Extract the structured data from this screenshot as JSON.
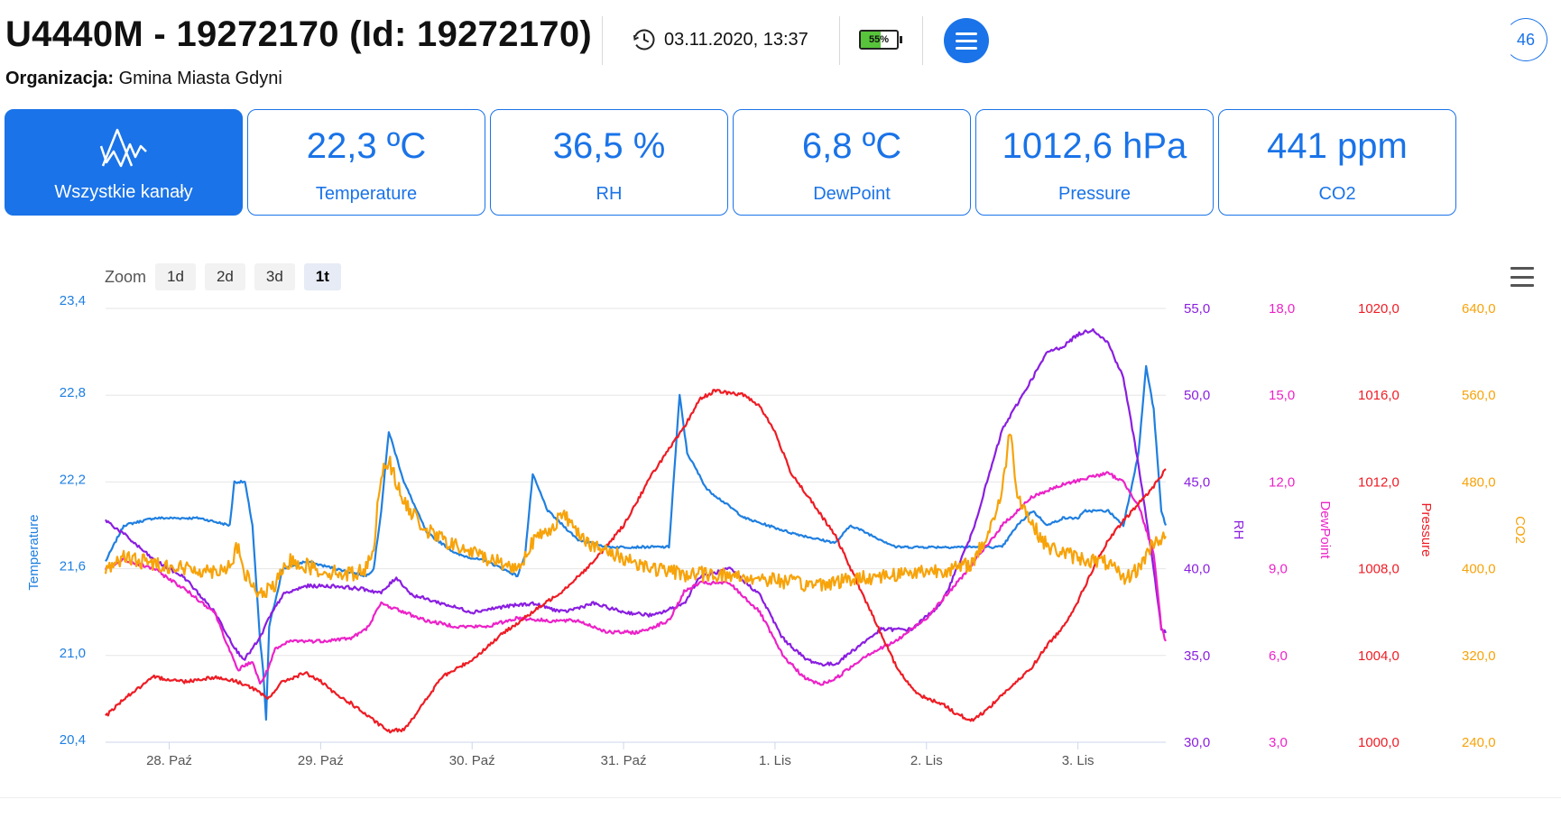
{
  "header": {
    "title": "U4440M - 19272170 (Id: 19272170)",
    "org_label": "Organizacja:",
    "org_value": "Gmina Miasta Gdyni",
    "datetime": "03.11.2020, 13:37",
    "battery_level": 55,
    "battery_text": "55%",
    "counter": "46",
    "history_icon": "clock-history-icon",
    "menu_icon": "hamburger-menu-icon"
  },
  "tiles": {
    "all": {
      "label": "Wszystkie kanały",
      "icon": "chart-lines-icon"
    },
    "temperature": {
      "value": "22,3 ºC",
      "label": "Temperature"
    },
    "rh": {
      "value": "36,5 %",
      "label": "RH"
    },
    "dewpoint": {
      "value": "6,8 ºC",
      "label": "DewPoint"
    },
    "pressure": {
      "value": "1012,6 hPa",
      "label": "Pressure"
    },
    "co2": {
      "value": "441 ppm",
      "label": "CO2"
    }
  },
  "zoom": {
    "label": "Zoom",
    "options": [
      "1d",
      "2d",
      "3d",
      "1t"
    ],
    "selected": "1t"
  },
  "colors": {
    "accent": "#1a73e8",
    "temperature": "#1f7fe0",
    "rh": "#8a1ee0",
    "dewpoint": "#ec22c8",
    "pressure": "#ee1c24",
    "co2": "#f7a30a"
  },
  "chart_data": {
    "type": "line",
    "x_labels": [
      "28. Paź",
      "29. Paź",
      "30. Paź",
      "31. Paź",
      "1. Lis",
      "2. Lis",
      "3. Lis"
    ],
    "x_range": [
      -0.42,
      6.58
    ],
    "axes": {
      "temperature": {
        "title": "Temperature",
        "ticks": [
          "20,4",
          "21,0",
          "21,6",
          "22,2",
          "22,8",
          "23,4"
        ],
        "range": [
          20.4,
          23.4
        ]
      },
      "rh": {
        "title": "RH",
        "ticks": [
          "30,0",
          "35,0",
          "40,0",
          "45,0",
          "50,0",
          "55,0"
        ],
        "range": [
          30,
          55
        ]
      },
      "dewpoint": {
        "title": "DewPoint",
        "ticks": [
          "3,0",
          "6,0",
          "9,0",
          "12,0",
          "15,0",
          "18,0"
        ],
        "range": [
          3,
          18
        ]
      },
      "pressure": {
        "title": "Pressure",
        "ticks": [
          "1000,0",
          "1004,0",
          "1008,0",
          "1012,0",
          "1016,0",
          "1020,0"
        ],
        "range": [
          1000,
          1020
        ]
      },
      "co2": {
        "title": "CO2",
        "ticks": [
          "240,0",
          "320,0",
          "400,0",
          "480,0",
          "560,0",
          "640,0"
        ],
        "range": [
          240,
          640
        ]
      }
    },
    "series": [
      {
        "name": "Temperature",
        "axis": "temperature",
        "noise": 0.008,
        "points": [
          [
            -0.42,
            21.65
          ],
          [
            -0.3,
            21.9
          ],
          [
            -0.1,
            21.95
          ],
          [
            0.2,
            21.95
          ],
          [
            0.4,
            21.9
          ],
          [
            0.43,
            22.2
          ],
          [
            0.5,
            22.2
          ],
          [
            0.55,
            21.9
          ],
          [
            0.6,
            21.1
          ],
          [
            0.62,
            20.9
          ],
          [
            0.64,
            20.55
          ],
          [
            0.66,
            21.2
          ],
          [
            0.75,
            21.6
          ],
          [
            0.9,
            21.65
          ],
          [
            1.1,
            21.6
          ],
          [
            1.3,
            21.55
          ],
          [
            1.35,
            21.6
          ],
          [
            1.4,
            22.0
          ],
          [
            1.45,
            22.55
          ],
          [
            1.55,
            22.2
          ],
          [
            1.7,
            21.85
          ],
          [
            1.9,
            21.7
          ],
          [
            2.1,
            21.65
          ],
          [
            2.3,
            21.55
          ],
          [
            2.35,
            21.7
          ],
          [
            2.4,
            22.25
          ],
          [
            2.5,
            22.0
          ],
          [
            2.7,
            21.8
          ],
          [
            2.9,
            21.75
          ],
          [
            3.1,
            21.75
          ],
          [
            3.2,
            21.75
          ],
          [
            3.3,
            21.75
          ],
          [
            3.37,
            22.8
          ],
          [
            3.42,
            22.4
          ],
          [
            3.55,
            22.15
          ],
          [
            3.8,
            21.95
          ],
          [
            4.1,
            21.85
          ],
          [
            4.3,
            21.8
          ],
          [
            4.4,
            21.78
          ],
          [
            4.5,
            21.9
          ],
          [
            4.6,
            21.85
          ],
          [
            4.8,
            21.75
          ],
          [
            5.1,
            21.75
          ],
          [
            5.3,
            21.75
          ],
          [
            5.5,
            21.75
          ],
          [
            5.6,
            21.9
          ],
          [
            5.7,
            22.0
          ],
          [
            5.8,
            21.9
          ],
          [
            5.9,
            21.95
          ],
          [
            6.0,
            21.95
          ],
          [
            6.05,
            22.0
          ],
          [
            6.2,
            22.0
          ],
          [
            6.3,
            21.9
          ],
          [
            6.4,
            22.4
          ],
          [
            6.45,
            23.0
          ],
          [
            6.5,
            22.7
          ],
          [
            6.55,
            22.0
          ],
          [
            6.58,
            21.9
          ]
        ]
      },
      {
        "name": "RH",
        "axis": "rh",
        "noise": 0.1,
        "points": [
          [
            -0.42,
            42.8
          ],
          [
            -0.3,
            42.0
          ],
          [
            -0.1,
            40.5
          ],
          [
            0.1,
            39.5
          ],
          [
            0.3,
            37.5
          ],
          [
            0.45,
            35.2
          ],
          [
            0.5,
            34.8
          ],
          [
            0.6,
            36.0
          ],
          [
            0.65,
            37.0
          ],
          [
            0.75,
            38.5
          ],
          [
            0.9,
            39.0
          ],
          [
            1.1,
            39.0
          ],
          [
            1.3,
            38.8
          ],
          [
            1.4,
            38.6
          ],
          [
            1.5,
            39.5
          ],
          [
            1.6,
            38.5
          ],
          [
            1.8,
            38.0
          ],
          [
            2.0,
            37.5
          ],
          [
            2.2,
            37.8
          ],
          [
            2.4,
            38.0
          ],
          [
            2.6,
            37.5
          ],
          [
            2.8,
            38.0
          ],
          [
            3.0,
            37.5
          ],
          [
            3.2,
            37.3
          ],
          [
            3.4,
            38.0
          ],
          [
            3.5,
            39.5
          ],
          [
            3.7,
            40.0
          ],
          [
            3.9,
            38.5
          ],
          [
            4.05,
            36.0
          ],
          [
            4.2,
            34.8
          ],
          [
            4.3,
            34.5
          ],
          [
            4.4,
            34.5
          ],
          [
            4.5,
            35.2
          ],
          [
            4.7,
            36.5
          ],
          [
            4.9,
            36.5
          ],
          [
            5.1,
            38.0
          ],
          [
            5.3,
            42.0
          ],
          [
            5.5,
            48.0
          ],
          [
            5.6,
            49.5
          ],
          [
            5.7,
            51.0
          ],
          [
            5.8,
            52.5
          ],
          [
            5.9,
            52.8
          ],
          [
            6.0,
            53.5
          ],
          [
            6.1,
            53.8
          ],
          [
            6.2,
            53.0
          ],
          [
            6.3,
            51.0
          ],
          [
            6.4,
            46.0
          ],
          [
            6.5,
            40.0
          ],
          [
            6.55,
            36.5
          ],
          [
            6.58,
            36.3
          ]
        ]
      },
      {
        "name": "DewPoint",
        "axis": "dewpoint",
        "noise": 0.06,
        "points": [
          [
            -0.42,
            9.0
          ],
          [
            -0.3,
            9.3
          ],
          [
            -0.1,
            9.0
          ],
          [
            0.1,
            8.3
          ],
          [
            0.3,
            7.5
          ],
          [
            0.45,
            5.5
          ],
          [
            0.55,
            5.8
          ],
          [
            0.6,
            5.0
          ],
          [
            0.65,
            5.5
          ],
          [
            0.7,
            6.2
          ],
          [
            0.8,
            6.5
          ],
          [
            1.0,
            6.5
          ],
          [
            1.2,
            6.6
          ],
          [
            1.3,
            6.9
          ],
          [
            1.4,
            7.8
          ],
          [
            1.5,
            7.6
          ],
          [
            1.7,
            7.2
          ],
          [
            1.9,
            7.0
          ],
          [
            2.1,
            7.0
          ],
          [
            2.3,
            7.3
          ],
          [
            2.5,
            7.2
          ],
          [
            2.7,
            7.2
          ],
          [
            2.9,
            6.8
          ],
          [
            3.1,
            6.8
          ],
          [
            3.3,
            7.2
          ],
          [
            3.4,
            8.2
          ],
          [
            3.5,
            8.5
          ],
          [
            3.7,
            8.5
          ],
          [
            3.9,
            7.5
          ],
          [
            4.05,
            6.0
          ],
          [
            4.2,
            5.2
          ],
          [
            4.3,
            5.0
          ],
          [
            4.4,
            5.2
          ],
          [
            4.6,
            6.0
          ],
          [
            4.8,
            6.5
          ],
          [
            5.0,
            7.3
          ],
          [
            5.2,
            8.5
          ],
          [
            5.4,
            9.8
          ],
          [
            5.5,
            10.5
          ],
          [
            5.6,
            11.0
          ],
          [
            5.7,
            11.5
          ],
          [
            5.8,
            11.7
          ],
          [
            5.9,
            11.9
          ],
          [
            6.1,
            12.2
          ],
          [
            6.2,
            12.3
          ],
          [
            6.3,
            12.0
          ],
          [
            6.4,
            11.2
          ],
          [
            6.5,
            9.5
          ],
          [
            6.55,
            7.0
          ],
          [
            6.58,
            6.5
          ]
        ]
      },
      {
        "name": "Pressure",
        "axis": "pressure",
        "noise": 0.08,
        "points": [
          [
            -0.42,
            1001.2
          ],
          [
            -0.3,
            1002.0
          ],
          [
            -0.1,
            1003.0
          ],
          [
            0.1,
            1002.8
          ],
          [
            0.3,
            1003.0
          ],
          [
            0.45,
            1002.8
          ],
          [
            0.55,
            1002.5
          ],
          [
            0.65,
            1002.0
          ],
          [
            0.75,
            1002.8
          ],
          [
            0.9,
            1003.2
          ],
          [
            1.0,
            1002.8
          ],
          [
            1.1,
            1002.2
          ],
          [
            1.2,
            1001.8
          ],
          [
            1.35,
            1001.0
          ],
          [
            1.45,
            1000.5
          ],
          [
            1.55,
            1000.6
          ],
          [
            1.65,
            1001.5
          ],
          [
            1.8,
            1003.0
          ],
          [
            2.0,
            1003.8
          ],
          [
            2.2,
            1005.0
          ],
          [
            2.4,
            1006.0
          ],
          [
            2.6,
            1007.0
          ],
          [
            2.8,
            1008.3
          ],
          [
            3.0,
            1010.0
          ],
          [
            3.2,
            1012.5
          ],
          [
            3.4,
            1014.5
          ],
          [
            3.5,
            1015.8
          ],
          [
            3.6,
            1016.2
          ],
          [
            3.8,
            1016.0
          ],
          [
            3.9,
            1015.5
          ],
          [
            4.0,
            1014.3
          ],
          [
            4.1,
            1012.5
          ],
          [
            4.2,
            1011.5
          ],
          [
            4.3,
            1010.5
          ],
          [
            4.4,
            1009.5
          ],
          [
            4.5,
            1008.0
          ],
          [
            4.6,
            1006.5
          ],
          [
            4.7,
            1005.0
          ],
          [
            4.8,
            1003.5
          ],
          [
            4.9,
            1002.5
          ],
          [
            5.0,
            1002.0
          ],
          [
            5.1,
            1001.8
          ],
          [
            5.2,
            1001.3
          ],
          [
            5.3,
            1001.0
          ],
          [
            5.4,
            1001.5
          ],
          [
            5.5,
            1002.2
          ],
          [
            5.6,
            1002.8
          ],
          [
            5.7,
            1003.5
          ],
          [
            5.8,
            1004.5
          ],
          [
            5.9,
            1005.3
          ],
          [
            6.0,
            1006.5
          ],
          [
            6.1,
            1008.0
          ],
          [
            6.2,
            1009.3
          ],
          [
            6.3,
            1010.2
          ],
          [
            6.4,
            1011.0
          ],
          [
            6.5,
            1011.8
          ],
          [
            6.58,
            1012.6
          ]
        ]
      },
      {
        "name": "CO2",
        "axis": "co2",
        "noise": 7,
        "points": [
          [
            -0.42,
            400
          ],
          [
            -0.3,
            410
          ],
          [
            -0.1,
            405
          ],
          [
            0.1,
            400
          ],
          [
            0.3,
            398
          ],
          [
            0.4,
            403
          ],
          [
            0.45,
            420
          ],
          [
            0.5,
            395
          ],
          [
            0.6,
            375
          ],
          [
            0.7,
            385
          ],
          [
            0.8,
            408
          ],
          [
            1.0,
            398
          ],
          [
            1.2,
            395
          ],
          [
            1.3,
            400
          ],
          [
            1.35,
            420
          ],
          [
            1.4,
            490
          ],
          [
            1.45,
            500
          ],
          [
            1.55,
            460
          ],
          [
            1.7,
            435
          ],
          [
            1.9,
            420
          ],
          [
            2.1,
            410
          ],
          [
            2.3,
            400
          ],
          [
            2.4,
            425
          ],
          [
            2.5,
            435
          ],
          [
            2.6,
            450
          ],
          [
            2.8,
            420
          ],
          [
            3.0,
            410
          ],
          [
            3.2,
            400
          ],
          [
            3.4,
            395
          ],
          [
            3.6,
            395
          ],
          [
            3.8,
            392
          ],
          [
            4.0,
            390
          ],
          [
            4.2,
            385
          ],
          [
            4.4,
            388
          ],
          [
            4.6,
            392
          ],
          [
            4.8,
            395
          ],
          [
            5.0,
            398
          ],
          [
            5.2,
            400
          ],
          [
            5.3,
            405
          ],
          [
            5.4,
            430
          ],
          [
            5.5,
            470
          ],
          [
            5.55,
            530
          ],
          [
            5.6,
            470
          ],
          [
            5.7,
            440
          ],
          [
            5.8,
            420
          ],
          [
            6.0,
            410
          ],
          [
            6.2,
            405
          ],
          [
            6.3,
            390
          ],
          [
            6.4,
            400
          ],
          [
            6.5,
            425
          ],
          [
            6.58,
            430
          ]
        ]
      }
    ]
  }
}
